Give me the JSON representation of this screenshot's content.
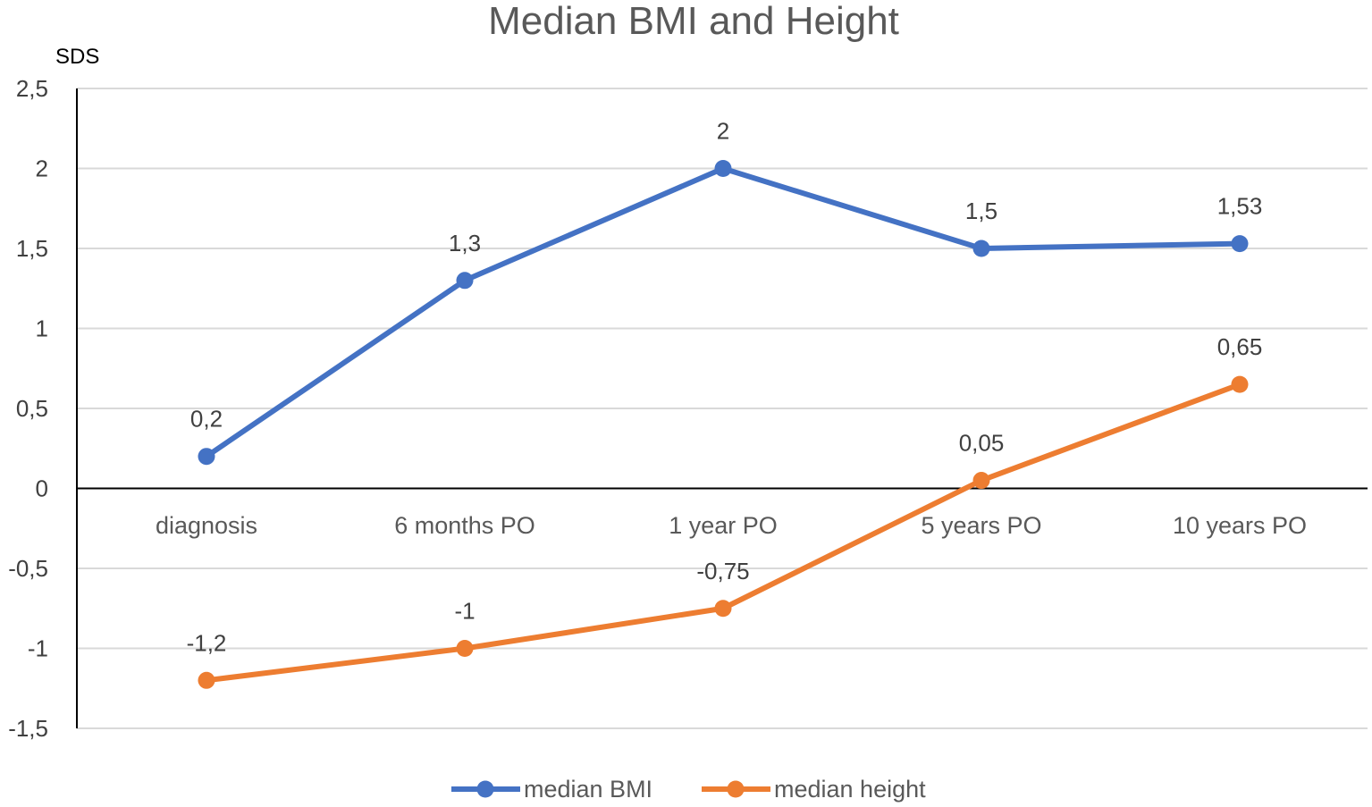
{
  "chart_data": {
    "type": "line",
    "title": "Median BMI and Height",
    "ylabel": "SDS",
    "xlabel": "",
    "ylim": [
      -1.5,
      2.5
    ],
    "yticks": [
      {
        "value": 2.5,
        "label": "2,5"
      },
      {
        "value": 2,
        "label": "2"
      },
      {
        "value": 1.5,
        "label": "1,5"
      },
      {
        "value": 1,
        "label": "1"
      },
      {
        "value": 0.5,
        "label": "0,5"
      },
      {
        "value": 0,
        "label": "0"
      },
      {
        "value": -0.5,
        "label": "-0,5"
      },
      {
        "value": -1,
        "label": "-1"
      },
      {
        "value": -1.5,
        "label": "-1,5"
      }
    ],
    "grid": true,
    "categories": [
      "diagnosis",
      "6 months PO",
      "1 year PO",
      "5 years PO",
      "10 years PO"
    ],
    "series": [
      {
        "name": "median BMI",
        "color": "#4472C4",
        "values": [
          0.2,
          1.3,
          2,
          1.5,
          1.53
        ],
        "labels": [
          "0,2",
          "1,3",
          "2",
          "1,5",
          "1,53"
        ]
      },
      {
        "name": "median height",
        "color": "#ED7D31",
        "values": [
          -1.2,
          -1,
          -0.75,
          0.05,
          0.65
        ],
        "labels": [
          "-1,2",
          "-1",
          "-0,75",
          "0,05",
          "0,65"
        ]
      }
    ],
    "legend_position": "bottom-center"
  }
}
